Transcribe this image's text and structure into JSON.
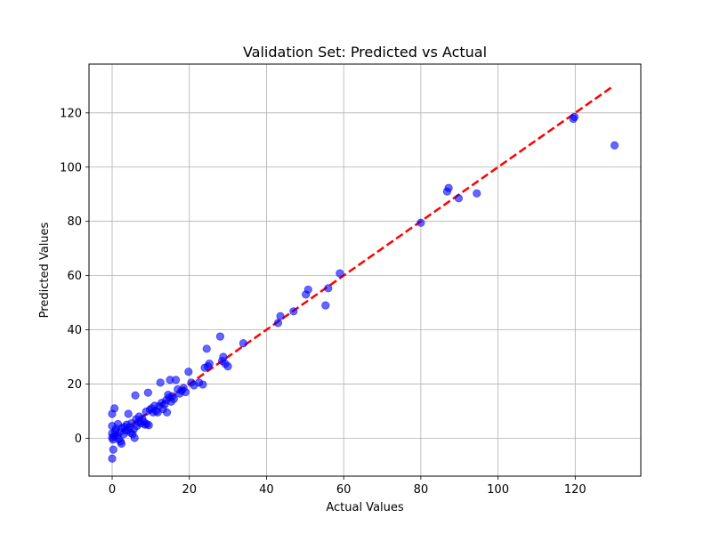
{
  "chart_data": {
    "type": "scatter",
    "title": "Validation Set: Predicted vs Actual",
    "xlabel": "Actual Values",
    "ylabel": "Predicted Values",
    "xlim": [
      -6,
      137
    ],
    "ylim": [
      -14,
      138
    ],
    "xticks": [
      0,
      20,
      40,
      60,
      80,
      100,
      120
    ],
    "yticks": [
      0,
      20,
      40,
      60,
      80,
      100,
      120
    ],
    "grid": true,
    "colors": {
      "points": "#0000ff",
      "reference_line": "#ff0000",
      "grid": "#b0b0b0"
    },
    "reference_line": {
      "style": "dashed",
      "x": [
        0,
        130
      ],
      "y": [
        0,
        130
      ]
    },
    "points": [
      {
        "x": 0.0,
        "y": -7.5
      },
      {
        "x": 0.3,
        "y": -4.2
      },
      {
        "x": 0.0,
        "y": 9.0
      },
      {
        "x": 0.6,
        "y": 11.0
      },
      {
        "x": 0.0,
        "y": 4.5
      },
      {
        "x": 0.0,
        "y": 1.8
      },
      {
        "x": 0.0,
        "y": 0.2
      },
      {
        "x": 0.2,
        "y": -0.5
      },
      {
        "x": 0.5,
        "y": 0.8
      },
      {
        "x": 0.8,
        "y": 2.5
      },
      {
        "x": 1.0,
        "y": 3.5
      },
      {
        "x": 1.3,
        "y": 1.0
      },
      {
        "x": 1.5,
        "y": 5.2
      },
      {
        "x": 1.7,
        "y": -0.4
      },
      {
        "x": 2.0,
        "y": 2.2
      },
      {
        "x": 2.2,
        "y": -1.2
      },
      {
        "x": 2.4,
        "y": -2.0
      },
      {
        "x": 2.6,
        "y": 3.8
      },
      {
        "x": 3.0,
        "y": 1.5
      },
      {
        "x": 3.2,
        "y": 4.2
      },
      {
        "x": 3.5,
        "y": 2.8
      },
      {
        "x": 3.8,
        "y": 5.0
      },
      {
        "x": 4.0,
        "y": 3.0
      },
      {
        "x": 4.2,
        "y": 9.0
      },
      {
        "x": 4.5,
        "y": 4.0
      },
      {
        "x": 4.8,
        "y": 2.0
      },
      {
        "x": 5.0,
        "y": 5.5
      },
      {
        "x": 5.3,
        "y": 1.5
      },
      {
        "x": 5.6,
        "y": 3.3
      },
      {
        "x": 5.8,
        "y": 0.1
      },
      {
        "x": 6.0,
        "y": 15.8
      },
      {
        "x": 6.2,
        "y": 7.0
      },
      {
        "x": 6.4,
        "y": 4.5
      },
      {
        "x": 6.8,
        "y": 6.0
      },
      {
        "x": 7.0,
        "y": 8.0
      },
      {
        "x": 7.4,
        "y": 5.5
      },
      {
        "x": 7.8,
        "y": 7.2
      },
      {
        "x": 8.2,
        "y": 6.0
      },
      {
        "x": 8.5,
        "y": 5.0
      },
      {
        "x": 8.8,
        "y": 9.8
      },
      {
        "x": 9.0,
        "y": 5.2
      },
      {
        "x": 9.3,
        "y": 16.8
      },
      {
        "x": 9.5,
        "y": 4.8
      },
      {
        "x": 9.8,
        "y": 10.5
      },
      {
        "x": 10.2,
        "y": 11.0
      },
      {
        "x": 10.6,
        "y": 9.5
      },
      {
        "x": 11.0,
        "y": 12.0
      },
      {
        "x": 11.4,
        "y": 10.0
      },
      {
        "x": 11.8,
        "y": 9.5
      },
      {
        "x": 12.2,
        "y": 11.8
      },
      {
        "x": 12.5,
        "y": 20.5
      },
      {
        "x": 12.8,
        "y": 13.0
      },
      {
        "x": 13.2,
        "y": 10.8
      },
      {
        "x": 13.6,
        "y": 12.5
      },
      {
        "x": 14.0,
        "y": 14.0
      },
      {
        "x": 14.2,
        "y": 9.5
      },
      {
        "x": 14.5,
        "y": 16.0
      },
      {
        "x": 14.8,
        "y": 15.0
      },
      {
        "x": 15.0,
        "y": 21.5
      },
      {
        "x": 15.3,
        "y": 13.5
      },
      {
        "x": 15.6,
        "y": 15.5
      },
      {
        "x": 16.0,
        "y": 14.5
      },
      {
        "x": 16.5,
        "y": 21.5
      },
      {
        "x": 17.0,
        "y": 18.0
      },
      {
        "x": 17.5,
        "y": 16.5
      },
      {
        "x": 18.0,
        "y": 17.5
      },
      {
        "x": 18.5,
        "y": 18.5
      },
      {
        "x": 19.0,
        "y": 17.0
      },
      {
        "x": 19.8,
        "y": 24.5
      },
      {
        "x": 20.5,
        "y": 20.5
      },
      {
        "x": 21.2,
        "y": 19.5
      },
      {
        "x": 22.5,
        "y": 20.5
      },
      {
        "x": 23.5,
        "y": 19.8
      },
      {
        "x": 24.0,
        "y": 26.0
      },
      {
        "x": 24.5,
        "y": 33.0
      },
      {
        "x": 24.8,
        "y": 26.5
      },
      {
        "x": 25.2,
        "y": 27.5
      },
      {
        "x": 28.0,
        "y": 37.5
      },
      {
        "x": 28.5,
        "y": 28.5
      },
      {
        "x": 28.8,
        "y": 30.0
      },
      {
        "x": 29.3,
        "y": 27.5
      },
      {
        "x": 30.0,
        "y": 26.5
      },
      {
        "x": 34.0,
        "y": 35.0
      },
      {
        "x": 43.0,
        "y": 42.5
      },
      {
        "x": 43.6,
        "y": 45.0
      },
      {
        "x": 47.0,
        "y": 46.8
      },
      {
        "x": 50.2,
        "y": 53.0
      },
      {
        "x": 50.8,
        "y": 54.8
      },
      {
        "x": 55.3,
        "y": 49.0
      },
      {
        "x": 56.0,
        "y": 55.3
      },
      {
        "x": 59.0,
        "y": 60.8
      },
      {
        "x": 80.0,
        "y": 79.5
      },
      {
        "x": 86.8,
        "y": 91.0
      },
      {
        "x": 87.2,
        "y": 92.3
      },
      {
        "x": 89.8,
        "y": 88.5
      },
      {
        "x": 94.5,
        "y": 90.3
      },
      {
        "x": 119.5,
        "y": 117.8
      },
      {
        "x": 119.8,
        "y": 118.5
      },
      {
        "x": 130.2,
        "y": 108.0
      }
    ]
  }
}
